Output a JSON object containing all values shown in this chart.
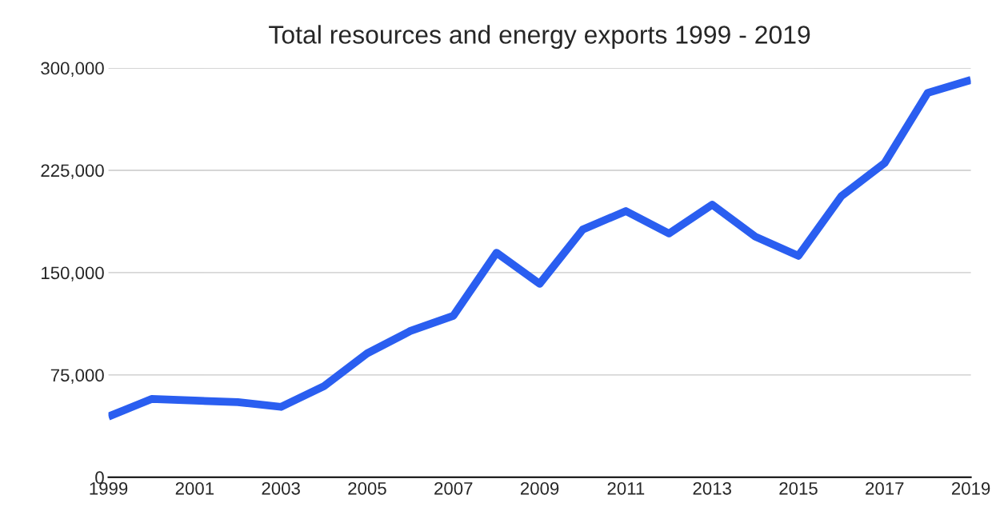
{
  "chart_data": {
    "type": "line",
    "title": "Total resources and energy exports 1999 - 2019",
    "x": [
      1999,
      2000,
      2001,
      2002,
      2003,
      2004,
      2005,
      2006,
      2007,
      2008,
      2009,
      2010,
      2011,
      2012,
      2013,
      2014,
      2015,
      2016,
      2017,
      2018,
      2019
    ],
    "series": [
      {
        "color": "#2a5ef0",
        "values": [
          44500,
          57400,
          56200,
          55100,
          51600,
          66800,
          90800,
          107200,
          118400,
          164600,
          141800,
          181600,
          195100,
          178700,
          199800,
          176400,
          162300,
          206200,
          230300,
          281800,
          291200
        ]
      }
    ],
    "xlim": [
      1999,
      2019
    ],
    "xticks": [
      1999,
      2001,
      2003,
      2005,
      2007,
      2009,
      2011,
      2013,
      2015,
      2017,
      2019
    ],
    "ylim": [
      0,
      300000
    ],
    "yticks": [
      {
        "value": 0,
        "label": "0"
      },
      {
        "value": 75000,
        "label": "75,000"
      },
      {
        "value": 150000,
        "label": "150,000"
      },
      {
        "value": 225000,
        "label": "225,000"
      },
      {
        "value": 300000,
        "label": "300,000"
      }
    ],
    "grid": "y",
    "legend": false,
    "marker": "none",
    "line_style": "solid"
  }
}
